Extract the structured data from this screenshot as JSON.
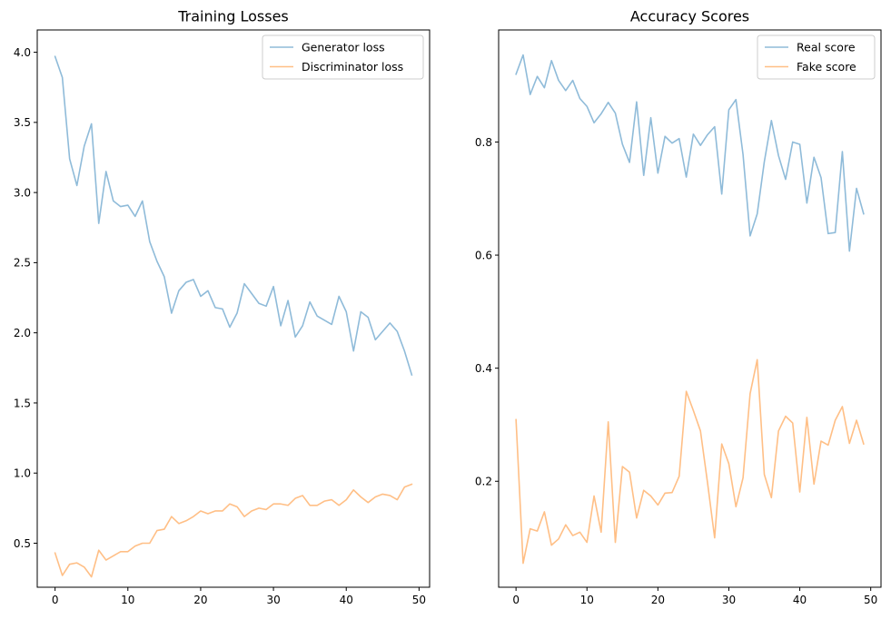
{
  "chart_data": [
    {
      "type": "line",
      "title": "Training Losses",
      "xlabel": "",
      "ylabel": "",
      "xlim": [
        -2.45,
        51.45
      ],
      "ylim": [
        0.1862,
        4.159
      ],
      "xticks": [
        0,
        10,
        20,
        30,
        40,
        50
      ],
      "yticks": [
        0.5,
        1.0,
        1.5,
        2.0,
        2.5,
        3.0,
        3.5,
        4.0
      ],
      "ytick_labels": [
        "0.5",
        "1.0",
        "1.5",
        "2.0",
        "2.5",
        "3.0",
        "3.5",
        "4.0"
      ],
      "grid": false,
      "legend_position": "upper right",
      "x": [
        0,
        1,
        2,
        3,
        4,
        5,
        6,
        7,
        8,
        9,
        10,
        11,
        12,
        13,
        14,
        15,
        16,
        17,
        18,
        19,
        20,
        21,
        22,
        23,
        24,
        25,
        26,
        27,
        28,
        29,
        30,
        31,
        32,
        33,
        34,
        35,
        36,
        37,
        38,
        39,
        40,
        41,
        42,
        43,
        44,
        45,
        46,
        47,
        48,
        49
      ],
      "series": [
        {
          "name": "Generator loss",
          "color": "#1f77b4",
          "values": [
            3.97,
            3.82,
            3.24,
            3.05,
            3.33,
            3.49,
            2.78,
            3.15,
            2.94,
            2.9,
            2.91,
            2.83,
            2.94,
            2.65,
            2.51,
            2.4,
            2.14,
            2.3,
            2.36,
            2.38,
            2.26,
            2.3,
            2.18,
            2.17,
            2.04,
            2.14,
            2.35,
            2.28,
            2.21,
            2.19,
            2.33,
            2.05,
            2.23,
            1.97,
            2.05,
            2.22,
            2.12,
            2.09,
            2.06,
            2.26,
            2.15,
            1.87,
            2.15,
            2.11,
            1.95,
            2.01,
            2.07,
            2.01,
            1.87,
            1.7
          ]
        },
        {
          "name": "Discriminator loss",
          "color": "#ff7f0e",
          "values": [
            0.43,
            0.27,
            0.35,
            0.36,
            0.33,
            0.26,
            0.45,
            0.38,
            0.41,
            0.44,
            0.44,
            0.48,
            0.5,
            0.5,
            0.59,
            0.6,
            0.69,
            0.64,
            0.66,
            0.69,
            0.73,
            0.71,
            0.73,
            0.73,
            0.78,
            0.76,
            0.69,
            0.73,
            0.75,
            0.74,
            0.78,
            0.78,
            0.77,
            0.82,
            0.84,
            0.77,
            0.77,
            0.8,
            0.81,
            0.77,
            0.81,
            0.88,
            0.83,
            0.79,
            0.83,
            0.85,
            0.84,
            0.81,
            0.9,
            0.92
          ]
        }
      ]
    },
    {
      "type": "line",
      "title": "Accuracy Scores",
      "xlabel": "",
      "ylabel": "",
      "xlim": [
        -2.45,
        51.45
      ],
      "ylim": [
        0.0126,
        0.9982
      ],
      "xticks": [
        0,
        10,
        20,
        30,
        40,
        50
      ],
      "yticks": [
        0.2,
        0.4,
        0.6,
        0.8
      ],
      "ytick_labels": [
        "0.2",
        "0.4",
        "0.6",
        "0.8"
      ],
      "grid": false,
      "legend_position": "upper right",
      "x": [
        0,
        1,
        2,
        3,
        4,
        5,
        6,
        7,
        8,
        9,
        10,
        11,
        12,
        13,
        14,
        15,
        16,
        17,
        18,
        19,
        20,
        21,
        22,
        23,
        24,
        25,
        26,
        27,
        28,
        29,
        30,
        31,
        32,
        33,
        34,
        35,
        36,
        37,
        38,
        39,
        40,
        41,
        42,
        43,
        44,
        45,
        46,
        47,
        48,
        49
      ],
      "series": [
        {
          "name": "Real score",
          "color": "#1f77b4",
          "values": [
            0.92,
            0.954,
            0.884,
            0.916,
            0.896,
            0.944,
            0.909,
            0.891,
            0.909,
            0.877,
            0.863,
            0.834,
            0.85,
            0.87,
            0.851,
            0.796,
            0.764,
            0.871,
            0.741,
            0.843,
            0.745,
            0.81,
            0.798,
            0.806,
            0.738,
            0.814,
            0.794,
            0.813,
            0.827,
            0.708,
            0.857,
            0.875,
            0.778,
            0.634,
            0.673,
            0.765,
            0.838,
            0.776,
            0.734,
            0.8,
            0.796,
            0.692,
            0.773,
            0.737,
            0.638,
            0.64,
            0.783,
            0.607,
            0.718,
            0.673
          ]
        },
        {
          "name": "Fake score",
          "color": "#ff7f0e",
          "values": [
            0.309,
            0.055,
            0.116,
            0.112,
            0.146,
            0.087,
            0.098,
            0.123,
            0.104,
            0.11,
            0.092,
            0.174,
            0.11,
            0.305,
            0.092,
            0.226,
            0.216,
            0.135,
            0.184,
            0.174,
            0.158,
            0.179,
            0.18,
            0.209,
            0.359,
            0.325,
            0.289,
            0.197,
            0.1,
            0.266,
            0.231,
            0.155,
            0.206,
            0.355,
            0.415,
            0.212,
            0.171,
            0.289,
            0.315,
            0.303,
            0.181,
            0.313,
            0.195,
            0.271,
            0.264,
            0.308,
            0.332,
            0.267,
            0.308,
            0.266
          ]
        }
      ]
    }
  ]
}
